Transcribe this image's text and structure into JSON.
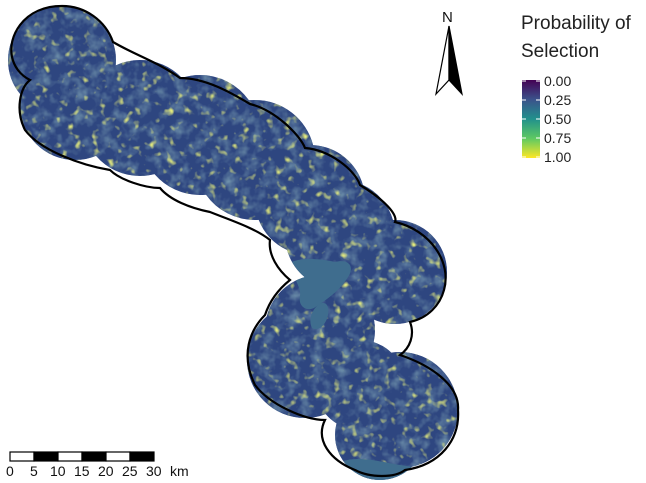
{
  "legend": {
    "title_line1": "Probability of",
    "title_line2": "Selection",
    "ticks": [
      "0.00",
      "0.25",
      "0.50",
      "0.75",
      "1.00"
    ],
    "colors": [
      "#440154",
      "#3b528b",
      "#21918c",
      "#5ec962",
      "#fde725"
    ]
  },
  "north_arrow": {
    "label": "N"
  },
  "scale_bar": {
    "ticks": [
      "0",
      "5",
      "10",
      "15",
      "20",
      "25",
      "30"
    ],
    "unit": "km"
  },
  "colors": {
    "water": "#3f6d8e",
    "boundary": "#000000"
  }
}
